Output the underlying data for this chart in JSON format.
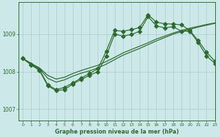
{
  "title": "Graphe pression niveau de la mer (hPa)",
  "background_color": "#cce8e8",
  "grid_color": "#aacccc",
  "line_color": "#2d6b2d",
  "xlim": [
    -0.5,
    23
  ],
  "ylim": [
    1006.7,
    1009.85
  ],
  "yticks": [
    1007,
    1008,
    1009
  ],
  "xticks": [
    0,
    1,
    2,
    3,
    4,
    5,
    6,
    7,
    8,
    9,
    10,
    11,
    12,
    13,
    14,
    15,
    16,
    17,
    18,
    19,
    20,
    21,
    22,
    23
  ],
  "s1_x": [
    0,
    1,
    2,
    3,
    4,
    5,
    6,
    7,
    8,
    9,
    10,
    11,
    12,
    13,
    14,
    15,
    16,
    17,
    18,
    19,
    20,
    21,
    22,
    23
  ],
  "s1_y": [
    1008.35,
    1008.22,
    1008.08,
    1007.82,
    1007.72,
    1007.78,
    1007.88,
    1007.96,
    1008.02,
    1008.1,
    1008.2,
    1008.32,
    1008.44,
    1008.53,
    1008.62,
    1008.72,
    1008.82,
    1008.91,
    1009.0,
    1009.07,
    1009.13,
    1009.19,
    1009.24,
    1009.29
  ],
  "s2_x": [
    0,
    1,
    2,
    3,
    4,
    5,
    6,
    7,
    8,
    9,
    10,
    11,
    12,
    13,
    14,
    15,
    16,
    17,
    18,
    19,
    20,
    21,
    22,
    23
  ],
  "s2_y": [
    1008.35,
    1008.22,
    1008.1,
    1007.9,
    1007.8,
    1007.85,
    1007.95,
    1008.03,
    1008.1,
    1008.17,
    1008.27,
    1008.38,
    1008.5,
    1008.59,
    1008.68,
    1008.77,
    1008.87,
    1008.95,
    1009.03,
    1009.1,
    1009.16,
    1009.21,
    1009.26,
    1009.3
  ],
  "s3_x": [
    0,
    1,
    2,
    3,
    4,
    5,
    6,
    7,
    8,
    9,
    10,
    11,
    12,
    13,
    14,
    15,
    16,
    17,
    18,
    19,
    20,
    21,
    22,
    23
  ],
  "s3_y": [
    1008.35,
    1008.2,
    1008.05,
    1007.65,
    1007.52,
    1007.58,
    1007.7,
    1007.83,
    1007.95,
    1008.08,
    1008.55,
    1009.1,
    1009.08,
    1009.12,
    1009.18,
    1009.52,
    1009.32,
    1009.28,
    1009.27,
    1009.25,
    1009.1,
    1008.83,
    1008.52,
    1008.28
  ],
  "s4_x": [
    0,
    1,
    2,
    3,
    4,
    5,
    6,
    7,
    8,
    9,
    10,
    11,
    12,
    13,
    14,
    15,
    16,
    17,
    18,
    19,
    20,
    21,
    22,
    23
  ],
  "s4_y": [
    1008.35,
    1008.18,
    1008.03,
    1007.62,
    1007.49,
    1007.52,
    1007.67,
    1007.79,
    1007.9,
    1008.0,
    1008.42,
    1009.0,
    1008.95,
    1008.99,
    1009.08,
    1009.47,
    1009.22,
    1009.17,
    1009.2,
    1009.08,
    1009.08,
    1008.78,
    1008.42,
    1008.22
  ]
}
